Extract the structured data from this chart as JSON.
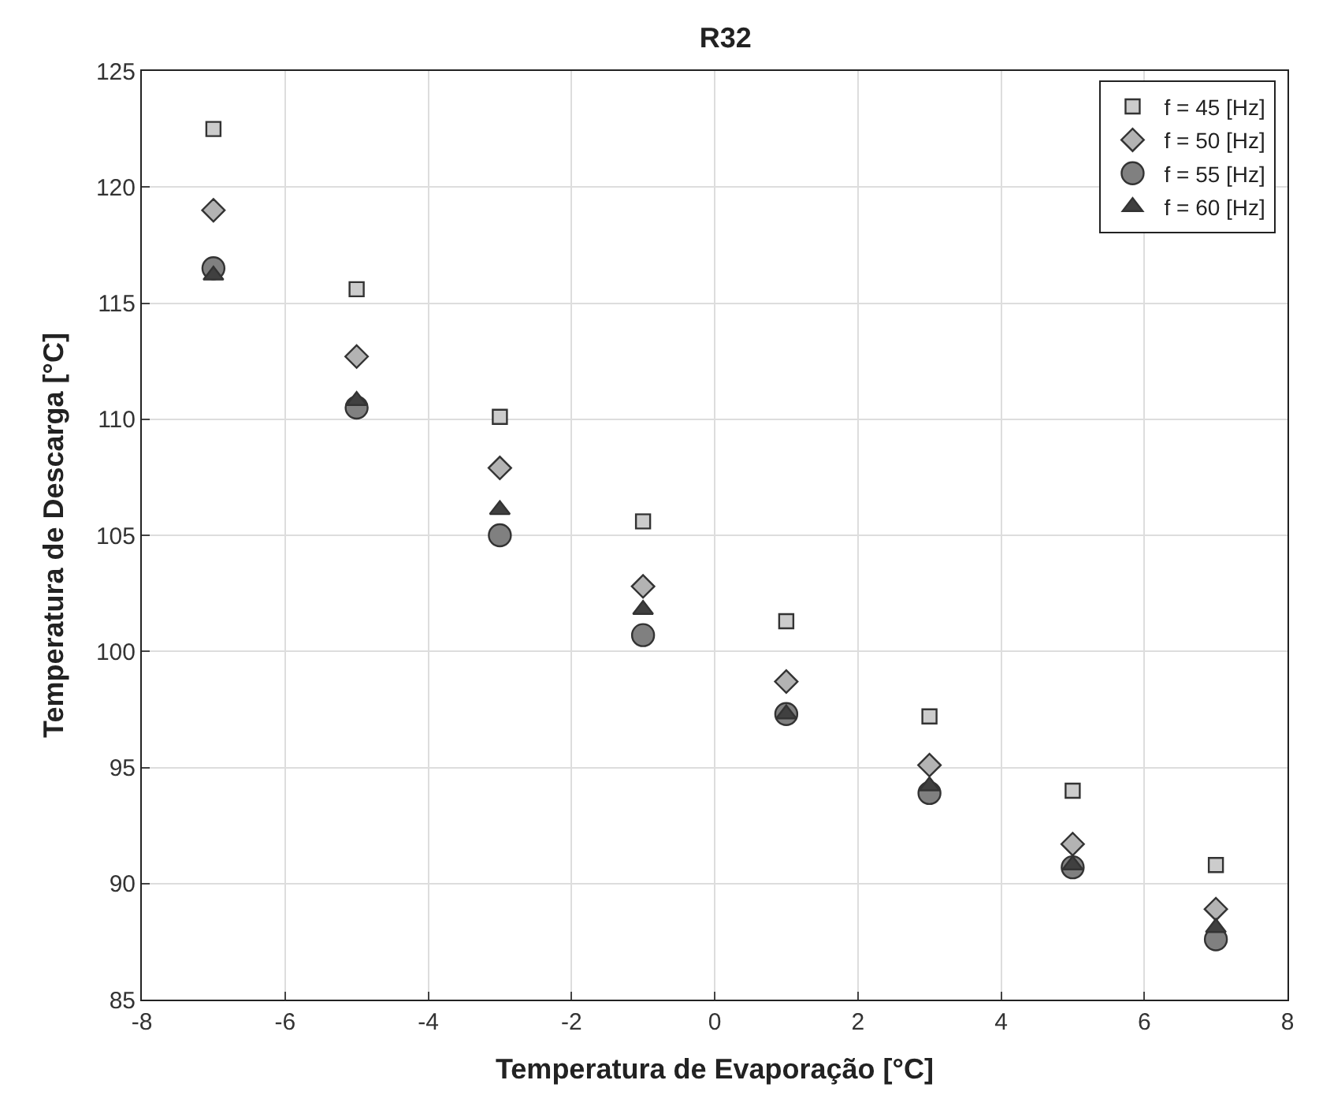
{
  "chart_data": {
    "type": "scatter",
    "title": "R32",
    "xlabel": "Temperatura de Evaporação [°C]",
    "ylabel": "Temperatura de Descarga [°C]",
    "x": [
      -7,
      -5,
      -3,
      -1,
      1,
      3,
      5,
      7
    ],
    "series": [
      {
        "name": "f = 45 [Hz]",
        "color": "#cccccc",
        "marker": "square",
        "values": [
          122.5,
          115.6,
          110.1,
          105.6,
          101.3,
          97.2,
          94.0,
          90.8
        ]
      },
      {
        "name": "f = 50 [Hz]",
        "color": "#b3b3b3",
        "marker": "diamond",
        "values": [
          119.0,
          112.7,
          107.9,
          102.8,
          98.7,
          95.1,
          91.7,
          88.9
        ]
      },
      {
        "name": "f = 55 [Hz]",
        "color": "#808080",
        "marker": "circle",
        "values": [
          116.5,
          110.5,
          105.0,
          100.7,
          97.3,
          93.9,
          90.7,
          87.6
        ]
      },
      {
        "name": "f = 60 [Hz]",
        "color": "#404040",
        "marker": "triangle",
        "values": [
          116.2,
          110.8,
          106.1,
          101.8,
          97.3,
          94.2,
          90.8,
          88.1
        ]
      }
    ],
    "xlim": [
      -8,
      8
    ],
    "xticks": [
      -8,
      -6,
      -4,
      -2,
      0,
      2,
      4,
      6,
      8
    ],
    "ylim": [
      85,
      125
    ],
    "yticks": [
      85,
      90,
      95,
      100,
      105,
      110,
      115,
      120,
      125
    ],
    "grid": true,
    "legend": "top right"
  }
}
